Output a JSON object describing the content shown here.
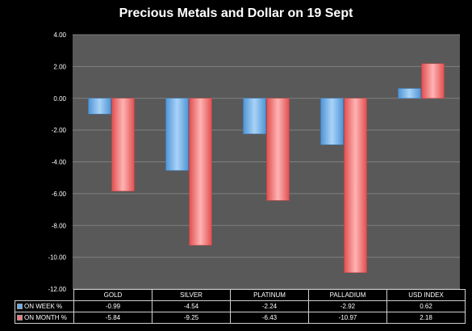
{
  "chart_data": {
    "type": "bar",
    "title": "Precious Metals and Dollar on 19 Sept",
    "categories": [
      "GOLD",
      "SILVER",
      "PLATINUM",
      "PALLADIUM",
      "USD INDEX"
    ],
    "series": [
      {
        "name": "ON WEEK %",
        "values": [
          -0.99,
          -4.54,
          -2.24,
          -2.92,
          0.62
        ],
        "color": "#6aaeea",
        "labels": [
          "-0.99",
          "-4.54",
          "-2.24",
          "-2.92",
          "0.62"
        ]
      },
      {
        "name": "ON MONTH %",
        "values": [
          -5.84,
          -9.25,
          -6.43,
          -10.97,
          2.18
        ],
        "color": "#f07878",
        "labels": [
          "-5.84",
          "-9.25",
          "-6.43",
          "-10.97",
          "2.18"
        ]
      }
    ],
    "ylim": [
      -12,
      4
    ],
    "yticks": [
      "4.00",
      "2.00",
      "0.00",
      "-2.00",
      "-4.00",
      "-6.00",
      "-8.00",
      "-10.00",
      "-12.00"
    ],
    "grid": true,
    "legend": "data-table-bottom",
    "plot_background": "#595959",
    "grid_color": "#808080"
  }
}
